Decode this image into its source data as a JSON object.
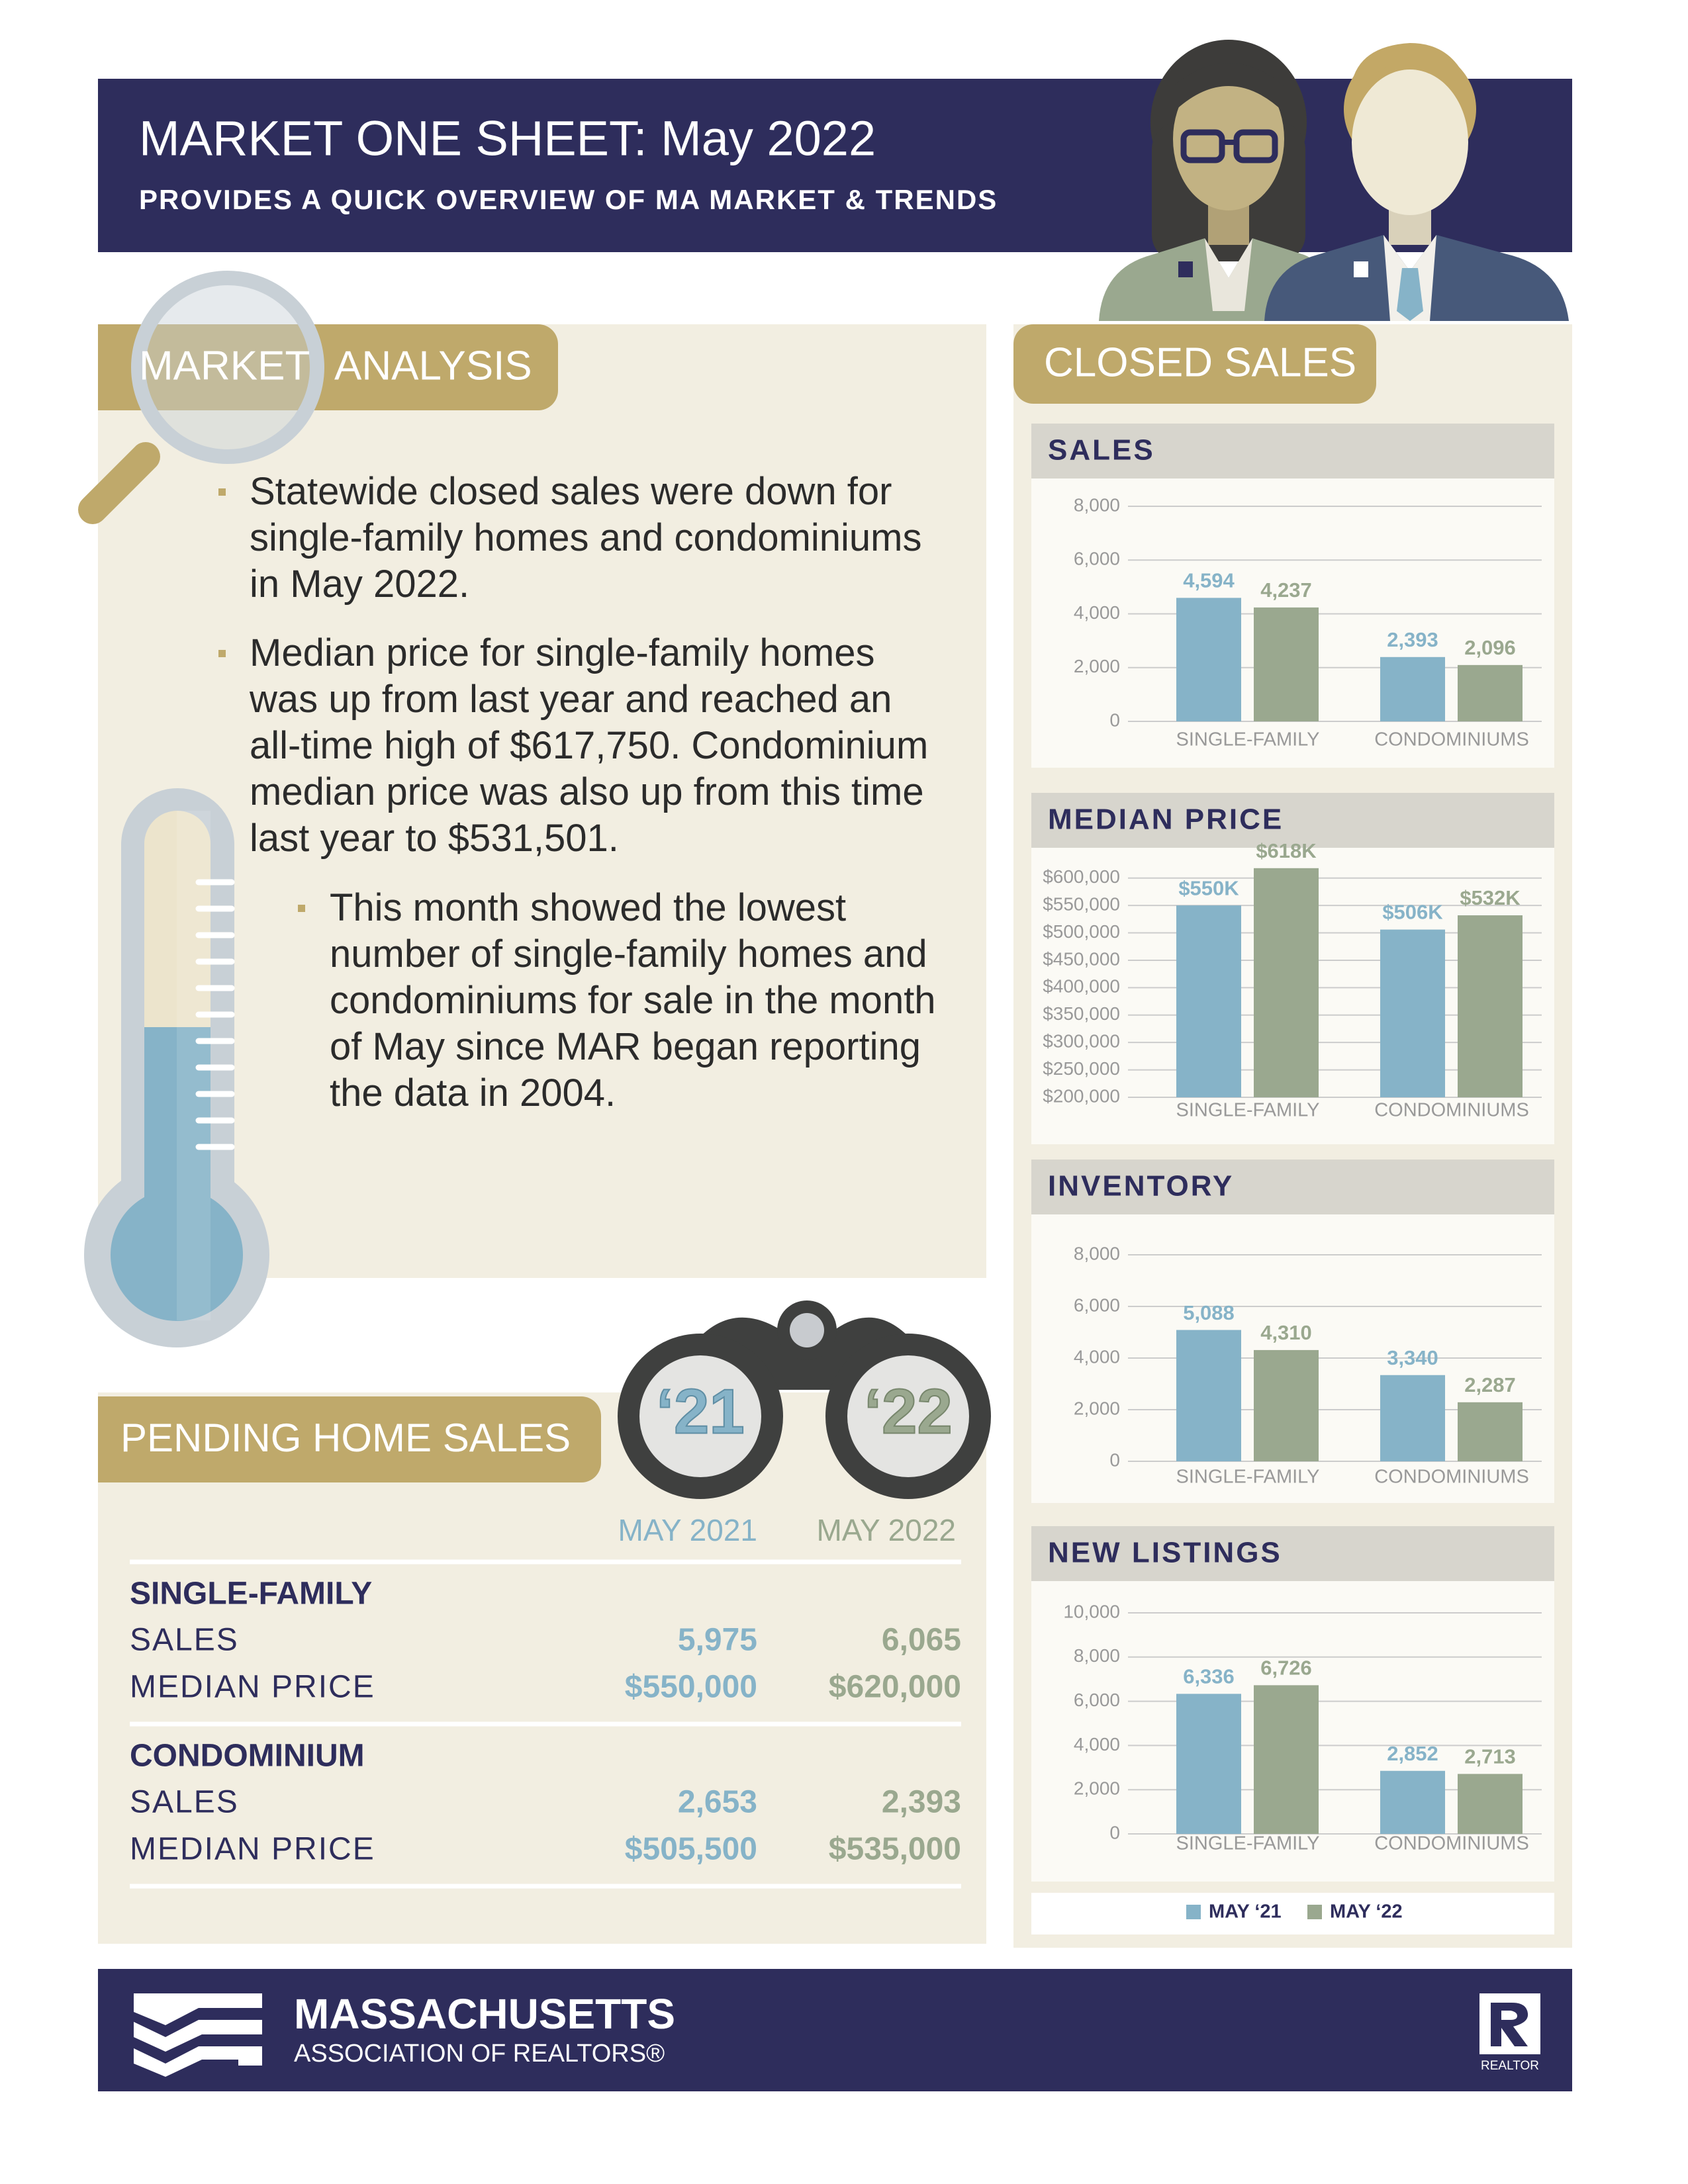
{
  "header": {
    "title": "MARKET ONE SHEET: May 2022",
    "subtitle": "PROVIDES A QUICK OVERVIEW OF MA MARKET & TRENDS"
  },
  "market_analysis": {
    "heading": [
      "MARKET",
      "ANALYSIS"
    ],
    "bullets": [
      "Statewide closed sales were down for single-family homes and condominiums in May 2022.",
      "Median price for single-family homes was up from last year and reached an all-time high of $617,750. Condominium median price was also up from this time last year to $531,501."
    ],
    "sub_bullet": "This month showed the lowest number of single-family homes and condominiums for sale in the month of May since MAR began reporting the data in 2004."
  },
  "pending_home_sales": {
    "heading": "PENDING HOME SALES",
    "binoculars": [
      "‘21",
      "‘22"
    ],
    "columns": [
      "MAY 2021",
      "MAY 2022"
    ],
    "groups": [
      {
        "name": "SINGLE-FAMILY",
        "rows": [
          {
            "label": "SALES",
            "values": [
              "5,975",
              "6,065"
            ]
          },
          {
            "label": "MEDIAN PRICE",
            "values": [
              "$550,000",
              "$620,000"
            ]
          }
        ]
      },
      {
        "name": "CONDOMINIUM",
        "rows": [
          {
            "label": "SALES",
            "values": [
              "2,653",
              "2,393"
            ]
          },
          {
            "label": "MEDIAN PRICE",
            "values": [
              "$505,500",
              "$535,000"
            ]
          }
        ]
      }
    ]
  },
  "closed_sales": {
    "heading": "CLOSED SALES"
  },
  "chart_data": [
    {
      "type": "bar",
      "title": "SALES",
      "categories": [
        "SINGLE-FAMILY",
        "CONDOMINIUMS"
      ],
      "series": [
        {
          "color": "#86b3c8",
          "values": [
            4594,
            2393
          ],
          "value_labels": [
            "4,594",
            "2,393"
          ]
        },
        {
          "color": "#9aa88f",
          "values": [
            4237,
            2096
          ],
          "value_labels": [
            "4,237",
            "2,096"
          ]
        }
      ],
      "ylim": [
        0,
        8000
      ],
      "yticks": [
        0,
        {
          "value": 2000,
          "label": "2,000"
        },
        {
          "value": 4000,
          "label": "4,000"
        },
        {
          "value": 6000,
          "label": "6,000"
        },
        {
          "value": 8000,
          "label": "8,000"
        }
      ],
      "grid": true
    },
    {
      "type": "bar",
      "title": "MEDIAN PRICE",
      "categories": [
        "SINGLE-FAMILY",
        "CONDOMINIUMS"
      ],
      "series": [
        {
          "color": "#86b3c8",
          "values": [
            550000,
            506000
          ],
          "value_labels": [
            "$550K",
            "$506K"
          ]
        },
        {
          "color": "#9aa88f",
          "values": [
            618000,
            532000
          ],
          "value_labels": [
            "$618K",
            "$532K"
          ]
        }
      ],
      "ylim": [
        200000,
        625000
      ],
      "yticks": [
        {
          "value": 200000,
          "label": "$200,000"
        },
        {
          "value": 250000,
          "label": "$250,000"
        },
        {
          "value": 300000,
          "label": "$300,000"
        },
        {
          "value": 350000,
          "label": "$350,000"
        },
        {
          "value": 400000,
          "label": "$400,000"
        },
        {
          "value": 450000,
          "label": "$450,000"
        },
        {
          "value": 500000,
          "label": "$500,000"
        },
        {
          "value": 550000,
          "label": "$550,000"
        },
        {
          "value": 600000,
          "label": "$600,000"
        }
      ],
      "grid": true
    },
    {
      "type": "bar",
      "title": "INVENTORY",
      "categories": [
        "SINGLE-FAMILY",
        "CONDOMINIUMS"
      ],
      "series": [
        {
          "color": "#86b3c8",
          "values": [
            5088,
            3340
          ],
          "value_labels": [
            "5,088",
            "3,340"
          ]
        },
        {
          "color": "#9aa88f",
          "values": [
            4310,
            2287
          ],
          "value_labels": [
            "4,310",
            "2,287"
          ]
        }
      ],
      "ylim": [
        0,
        8000
      ],
      "yticks": [
        0,
        {
          "value": 2000,
          "label": "2,000"
        },
        {
          "value": 4000,
          "label": "4,000"
        },
        {
          "value": 6000,
          "label": "6,000"
        },
        {
          "value": 8000,
          "label": "8,000"
        }
      ],
      "grid": true
    },
    {
      "type": "bar",
      "title": "NEW LISTINGS",
      "categories": [
        "SINGLE-FAMILY",
        "CONDOMINIUMS"
      ],
      "series": [
        {
          "name": "MAY ‘21",
          "color": "#86b3c8",
          "values": [
            6336,
            2852
          ],
          "value_labels": [
            "6,336",
            "2,852"
          ]
        },
        {
          "name": "MAY ‘22",
          "color": "#9aa88f",
          "values": [
            6726,
            2713
          ],
          "value_labels": [
            "6,726",
            "2,713"
          ]
        }
      ],
      "ylim": [
        0,
        10000
      ],
      "yticks": [
        0,
        {
          "value": 2000,
          "label": "2,000"
        },
        {
          "value": 4000,
          "label": "4,000"
        },
        {
          "value": 6000,
          "label": "6,000"
        },
        {
          "value": 8000,
          "label": "8,000"
        },
        {
          "value": 10000,
          "label": "10,000"
        }
      ],
      "grid": true
    }
  ],
  "footer": {
    "org": "MASSACHUSETTS",
    "org_sub": "ASSOCIATION OF REALTORS®",
    "badge": "REALTOR"
  }
}
